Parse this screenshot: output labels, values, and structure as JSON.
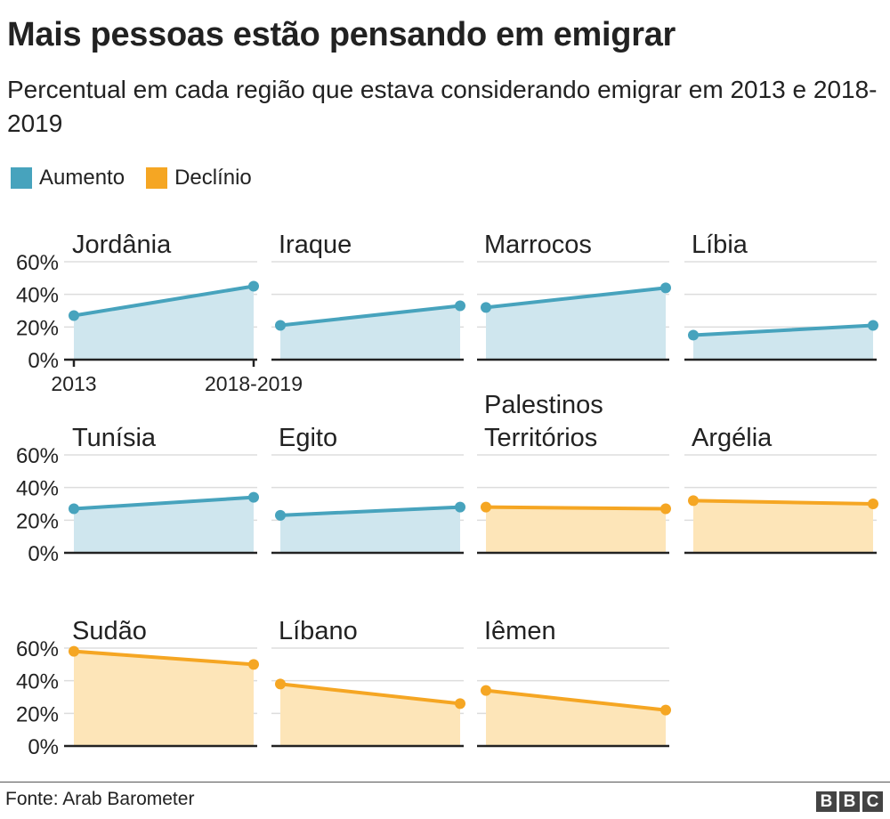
{
  "header": {
    "title": "Mais pessoas estão pensando em emigrar",
    "subtitle": "Percentual em cada região que estava considerando emigrar em 2013 e 2018-2019"
  },
  "legend": {
    "increase_label": "Aumento",
    "decline_label": "Declínio"
  },
  "colors": {
    "increase_line": "#47a3bd",
    "increase_fill": "#cfe6ee",
    "decline_line": "#f5a623",
    "decline_fill": "#fde5b8",
    "grid": "#dddddd",
    "axis": "#222222"
  },
  "chart_data": {
    "type": "area",
    "title": "Mais pessoas estão pensando em emigrar",
    "subtitle": "Percentual em cada região que estava considerando emigrar em 2013 e 2018-2019",
    "x": [
      "2013",
      "2018-2019"
    ],
    "y_ticks": [
      "0%",
      "20%",
      "40%",
      "60%"
    ],
    "ylim": [
      0,
      60
    ],
    "grid": true,
    "legend_position": "top-left",
    "panels": [
      {
        "name": "Jordânia",
        "values": [
          27,
          45
        ],
        "trend": "Aumento"
      },
      {
        "name": "Iraque",
        "values": [
          21,
          33
        ],
        "trend": "Aumento"
      },
      {
        "name": "Marrocos",
        "values": [
          32,
          44
        ],
        "trend": "Aumento"
      },
      {
        "name": "Líbia",
        "values": [
          15,
          21
        ],
        "trend": "Aumento"
      },
      {
        "name": "Tunísia",
        "values": [
          27,
          34
        ],
        "trend": "Aumento"
      },
      {
        "name": "Egito",
        "values": [
          23,
          28
        ],
        "trend": "Aumento"
      },
      {
        "name": "Palestinos Territórios",
        "values": [
          28,
          27
        ],
        "trend": "Declínio"
      },
      {
        "name": "Argélia",
        "values": [
          32,
          30
        ],
        "trend": "Declínio"
      },
      {
        "name": "Sudão",
        "values": [
          58,
          50
        ],
        "trend": "Declínio"
      },
      {
        "name": "Líbano",
        "values": [
          38,
          26
        ],
        "trend": "Declínio"
      },
      {
        "name": "Iêmen",
        "values": [
          34,
          22
        ],
        "trend": "Declínio"
      }
    ]
  },
  "footer": {
    "source": "Fonte: Arab Barometer",
    "logo_letters": [
      "B",
      "B",
      "C"
    ]
  }
}
